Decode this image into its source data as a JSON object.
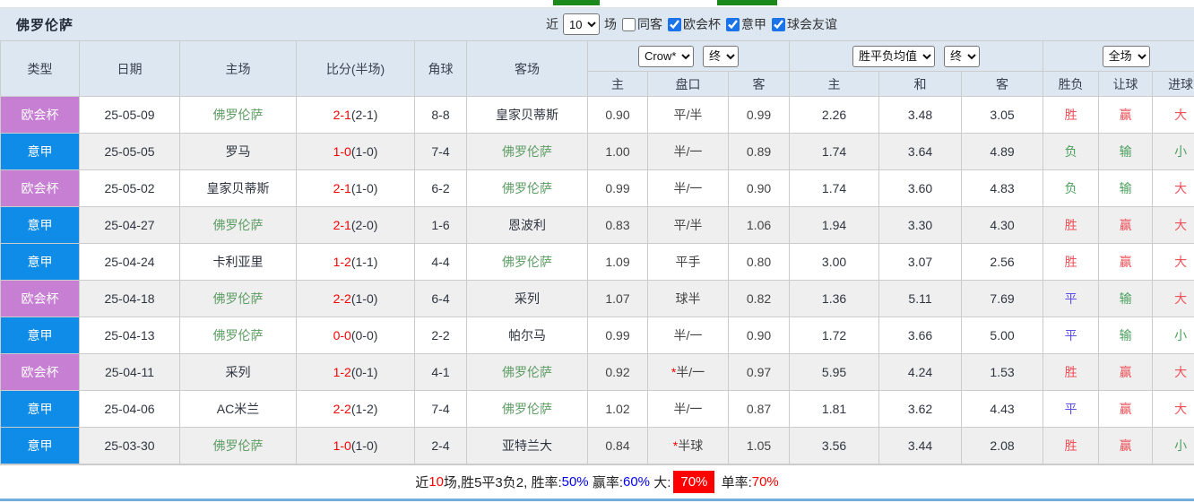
{
  "top_strip": {
    "tab_color": "#1b8a1b"
  },
  "title_bar": {
    "team": "佛罗伦萨",
    "recent_prefix": "近",
    "recent_count": "10",
    "recent_suffix": "场",
    "same_away_label": "同客",
    "same_away_checked": false,
    "league_filters": [
      {
        "label": "欧会杯",
        "checked": true
      },
      {
        "label": "意甲",
        "checked": true
      },
      {
        "label": "球会友谊",
        "checked": true
      }
    ]
  },
  "table": {
    "main_headers": [
      "类型",
      "日期",
      "主场",
      "比分(半场)",
      "角球",
      "客场"
    ],
    "handicap_select": "Crow*",
    "handicap_time_select": "终",
    "handicap_subheaders": [
      "主",
      "盘口",
      "客"
    ],
    "odds_select": "胜平负均值",
    "odds_time_select": "终",
    "odds_subheaders": [
      "主",
      "和",
      "客"
    ],
    "result_select": "全场",
    "result_subheaders": [
      "胜负",
      "让球",
      "进球"
    ],
    "league_colors": {
      "欧会杯": "#c77fd4",
      "意甲": "#0f8ce8"
    },
    "result_colors": {
      "red": "#ef4f58",
      "green": "#4ba05d",
      "blue": "#5b4fe8"
    },
    "self_team_color": "#5d9c63",
    "score_color": "#ff0000",
    "rows": [
      {
        "league": "欧会杯",
        "date": "25-05-09",
        "home": "佛罗伦萨",
        "home_self": true,
        "score": "2-1",
        "half": "(2-1)",
        "corners": "8-8",
        "away": "皇家贝蒂斯",
        "away_self": false,
        "ah_home": "0.90",
        "ah_line": "平/半",
        "ah_star": false,
        "ah_away": "0.99",
        "odds_home": "2.26",
        "odds_draw": "3.48",
        "odds_away": "3.05",
        "result": {
          "t": "胜",
          "c": "red"
        },
        "handicap_result": {
          "t": "赢",
          "c": "red"
        },
        "goals_result": {
          "t": "大",
          "c": "red"
        }
      },
      {
        "league": "意甲",
        "date": "25-05-05",
        "home": "罗马",
        "home_self": false,
        "score": "1-0",
        "half": "(1-0)",
        "corners": "7-4",
        "away": "佛罗伦萨",
        "away_self": true,
        "ah_home": "1.00",
        "ah_line": "半/一",
        "ah_star": false,
        "ah_away": "0.89",
        "odds_home": "1.74",
        "odds_draw": "3.64",
        "odds_away": "4.89",
        "result": {
          "t": "负",
          "c": "green"
        },
        "handicap_result": {
          "t": "输",
          "c": "green"
        },
        "goals_result": {
          "t": "小",
          "c": "green"
        }
      },
      {
        "league": "欧会杯",
        "date": "25-05-02",
        "home": "皇家贝蒂斯",
        "home_self": false,
        "score": "2-1",
        "half": "(1-0)",
        "corners": "6-2",
        "away": "佛罗伦萨",
        "away_self": true,
        "ah_home": "0.99",
        "ah_line": "半/一",
        "ah_star": false,
        "ah_away": "0.90",
        "odds_home": "1.74",
        "odds_draw": "3.60",
        "odds_away": "4.83",
        "result": {
          "t": "负",
          "c": "green"
        },
        "handicap_result": {
          "t": "输",
          "c": "green"
        },
        "goals_result": {
          "t": "大",
          "c": "red"
        }
      },
      {
        "league": "意甲",
        "date": "25-04-27",
        "home": "佛罗伦萨",
        "home_self": true,
        "score": "2-1",
        "half": "(2-0)",
        "corners": "1-6",
        "away": "恩波利",
        "away_self": false,
        "ah_home": "0.83",
        "ah_line": "平/半",
        "ah_star": false,
        "ah_away": "1.06",
        "odds_home": "1.94",
        "odds_draw": "3.30",
        "odds_away": "4.30",
        "result": {
          "t": "胜",
          "c": "red"
        },
        "handicap_result": {
          "t": "赢",
          "c": "red"
        },
        "goals_result": {
          "t": "大",
          "c": "red"
        }
      },
      {
        "league": "意甲",
        "date": "25-04-24",
        "home": "卡利亚里",
        "home_self": false,
        "score": "1-2",
        "half": "(1-1)",
        "corners": "4-4",
        "away": "佛罗伦萨",
        "away_self": true,
        "ah_home": "1.09",
        "ah_line": "平手",
        "ah_star": false,
        "ah_away": "0.80",
        "odds_home": "3.00",
        "odds_draw": "3.07",
        "odds_away": "2.56",
        "result": {
          "t": "胜",
          "c": "red"
        },
        "handicap_result": {
          "t": "赢",
          "c": "red"
        },
        "goals_result": {
          "t": "大",
          "c": "red"
        }
      },
      {
        "league": "欧会杯",
        "date": "25-04-18",
        "home": "佛罗伦萨",
        "home_self": true,
        "score": "2-2",
        "half": "(1-0)",
        "corners": "6-4",
        "away": "采列",
        "away_self": false,
        "ah_home": "1.07",
        "ah_line": "球半",
        "ah_star": false,
        "ah_away": "0.82",
        "odds_home": "1.36",
        "odds_draw": "5.11",
        "odds_away": "7.69",
        "result": {
          "t": "平",
          "c": "blue"
        },
        "handicap_result": {
          "t": "输",
          "c": "green"
        },
        "goals_result": {
          "t": "大",
          "c": "red"
        }
      },
      {
        "league": "意甲",
        "date": "25-04-13",
        "home": "佛罗伦萨",
        "home_self": true,
        "score": "0-0",
        "half": "(0-0)",
        "corners": "2-2",
        "away": "帕尔马",
        "away_self": false,
        "ah_home": "0.99",
        "ah_line": "半/一",
        "ah_star": false,
        "ah_away": "0.90",
        "odds_home": "1.72",
        "odds_draw": "3.66",
        "odds_away": "5.00",
        "result": {
          "t": "平",
          "c": "blue"
        },
        "handicap_result": {
          "t": "输",
          "c": "green"
        },
        "goals_result": {
          "t": "小",
          "c": "green"
        }
      },
      {
        "league": "欧会杯",
        "date": "25-04-11",
        "home": "采列",
        "home_self": false,
        "score": "1-2",
        "half": "(0-1)",
        "corners": "4-1",
        "away": "佛罗伦萨",
        "away_self": true,
        "ah_home": "0.92",
        "ah_line": "半/一",
        "ah_star": true,
        "ah_away": "0.97",
        "odds_home": "5.95",
        "odds_draw": "4.24",
        "odds_away": "1.53",
        "result": {
          "t": "胜",
          "c": "red"
        },
        "handicap_result": {
          "t": "赢",
          "c": "red"
        },
        "goals_result": {
          "t": "大",
          "c": "red"
        }
      },
      {
        "league": "意甲",
        "date": "25-04-06",
        "home": "AC米兰",
        "home_self": false,
        "score": "2-2",
        "half": "(1-2)",
        "corners": "7-4",
        "away": "佛罗伦萨",
        "away_self": true,
        "ah_home": "1.02",
        "ah_line": "半/一",
        "ah_star": false,
        "ah_away": "0.87",
        "odds_home": "1.81",
        "odds_draw": "3.62",
        "odds_away": "4.43",
        "result": {
          "t": "平",
          "c": "blue"
        },
        "handicap_result": {
          "t": "赢",
          "c": "red"
        },
        "goals_result": {
          "t": "大",
          "c": "red"
        }
      },
      {
        "league": "意甲",
        "date": "25-03-30",
        "home": "佛罗伦萨",
        "home_self": true,
        "score": "1-0",
        "half": "(1-0)",
        "corners": "2-4",
        "away": "亚特兰大",
        "away_self": false,
        "ah_home": "0.84",
        "ah_line": "半球",
        "ah_star": true,
        "ah_away": "1.05",
        "odds_home": "3.56",
        "odds_draw": "3.44",
        "odds_away": "2.08",
        "result": {
          "t": "胜",
          "c": "red"
        },
        "handicap_result": {
          "t": "赢",
          "c": "red"
        },
        "goals_result": {
          "t": "小",
          "c": "green"
        }
      }
    ]
  },
  "footer": {
    "segments": [
      {
        "text": "近",
        "style": "plain"
      },
      {
        "text": "10",
        "style": "red"
      },
      {
        "text": "场,胜5平3负2, 胜率:",
        "style": "plain"
      },
      {
        "text": "50%",
        "style": "blue"
      },
      {
        "text": " 赢率:",
        "style": "plain"
      },
      {
        "text": "60%",
        "style": "blue"
      },
      {
        "text": " 大:",
        "style": "plain"
      },
      {
        "text": "70%",
        "style": "red-box"
      },
      {
        "text": " 单率:",
        "style": "plain"
      },
      {
        "text": "70%",
        "style": "red"
      }
    ]
  }
}
